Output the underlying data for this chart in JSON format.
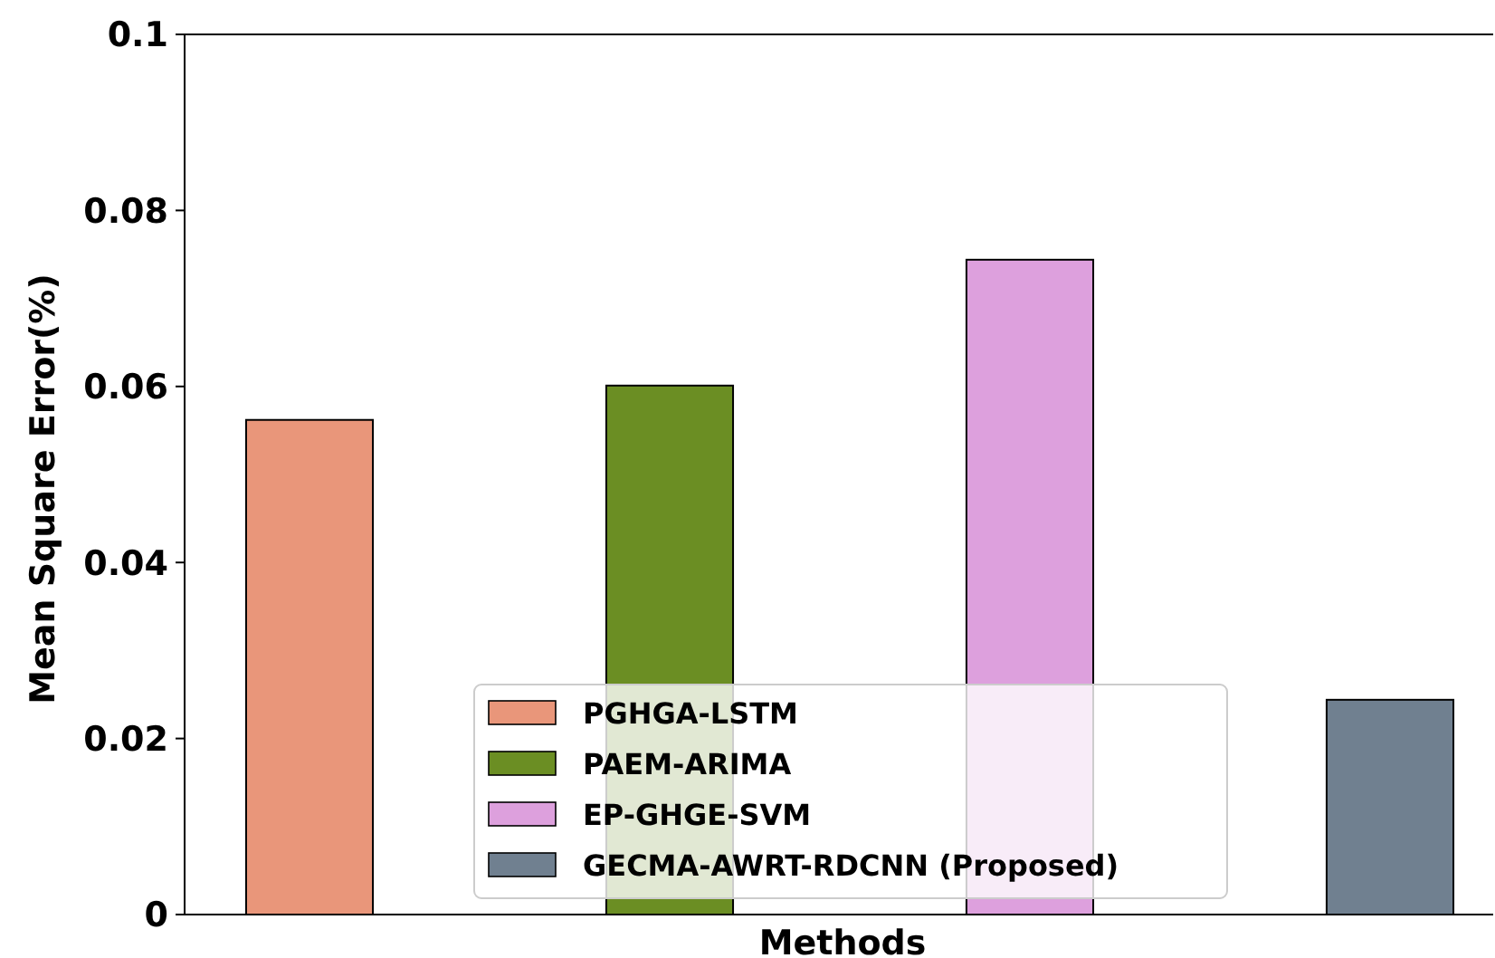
{
  "chart_data": {
    "type": "bar",
    "xlabel": "Methods",
    "ylabel": "Mean Square Error(%)",
    "categories": [
      null,
      null,
      null,
      null
    ],
    "series": [
      {
        "name": "PGHGA-LSTM",
        "color": "#e9967a",
        "values": [
          0.0562,
          null,
          null,
          null
        ]
      },
      {
        "name": "PAEM-ARIMA",
        "color": "#6b8e23",
        "values": [
          null,
          0.0601,
          null,
          null
        ]
      },
      {
        "name": "EP-GHGE-SVM",
        "color": "#dda0dd",
        "values": [
          null,
          null,
          0.0744,
          null
        ]
      },
      {
        "name": "GECMA-AWRT-RDCNN (Proposed)",
        "color": "#708090",
        "values": [
          null,
          null,
          null,
          0.0244
        ]
      }
    ],
    "ylim": [
      0,
      0.1
    ],
    "yticks": [
      0,
      0.02,
      0.04,
      0.06,
      0.08,
      0.1
    ],
    "legend": "bottom"
  }
}
